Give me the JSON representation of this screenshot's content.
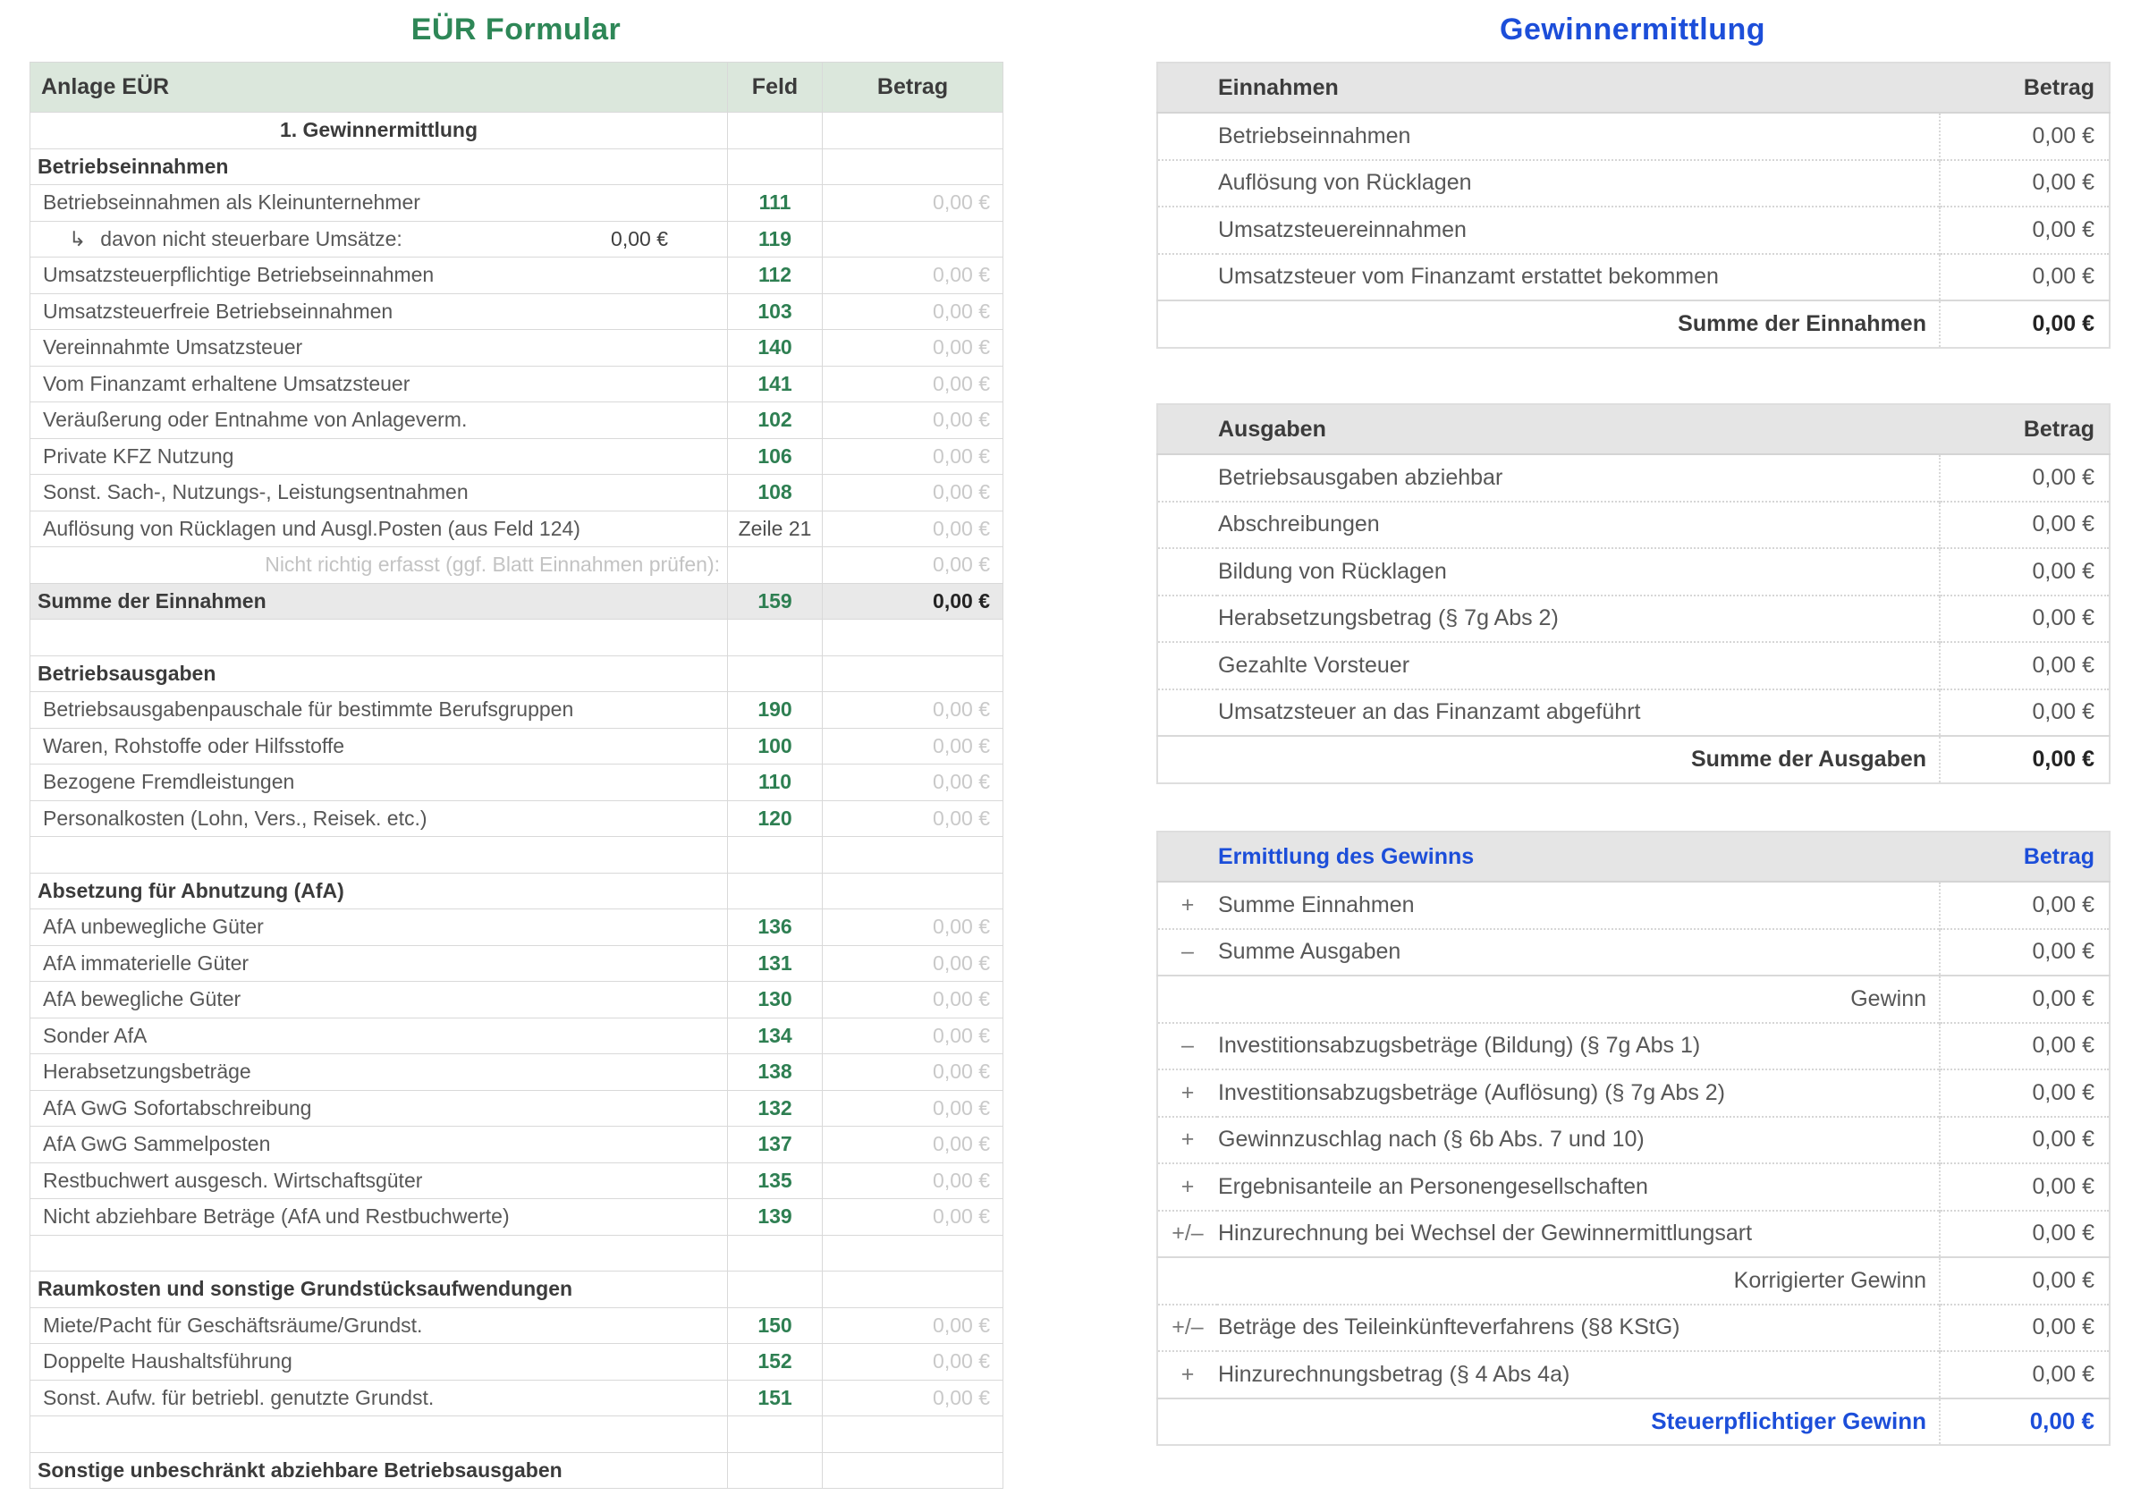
{
  "app": {
    "left_title": "EÜR Formular",
    "right_title": "Gewinnermittlung"
  },
  "colors": {
    "green_title": "#2E8757",
    "green_field": "#2E7F52",
    "blue_accent": "#1C4ED9",
    "left_header_bg": "#DBE7DC",
    "right_header_bg": "#E5E5E5",
    "sum_row_bg": "#E9E9E9",
    "muted_value": "#C9C9C9"
  },
  "left_table": {
    "header": {
      "label": "Anlage EÜR",
      "feld": "Feld",
      "betrag": "Betrag"
    },
    "rows": [
      {
        "type": "center",
        "label": "1. Gewinnermittlung",
        "feld": "",
        "betrag": ""
      },
      {
        "type": "section",
        "label": "Betriebseinnahmen",
        "feld": "",
        "betrag": ""
      },
      {
        "type": "item",
        "label": "Betriebseinnahmen als Kleinunternehmer",
        "feld": "111",
        "betrag": "0,00 €"
      },
      {
        "type": "sub",
        "label": "davon nicht steuerbare Umsätze:",
        "arrow": "↳",
        "inline_value": "0,00 €",
        "feld": "119",
        "betrag": ""
      },
      {
        "type": "item",
        "label": "Umsatzsteuerpflichtige Betriebseinnahmen",
        "feld": "112",
        "betrag": "0,00 €"
      },
      {
        "type": "item",
        "label": "Umsatzsteuerfreie Betriebseinnahmen",
        "feld": "103",
        "betrag": "0,00 €"
      },
      {
        "type": "item",
        "label": "Vereinnahmte Umsatzsteuer",
        "feld": "140",
        "betrag": "0,00 €"
      },
      {
        "type": "item",
        "label": "Vom Finanzamt erhaltene Umsatzsteuer",
        "feld": "141",
        "betrag": "0,00 €"
      },
      {
        "type": "item",
        "label": "Veräußerung oder Entnahme von Anlageverm.",
        "feld": "102",
        "betrag": "0,00 €"
      },
      {
        "type": "item",
        "label": "Private KFZ Nutzung",
        "feld": "106",
        "betrag": "0,00 €"
      },
      {
        "type": "item",
        "label": "Sonst. Sach-, Nutzungs-, Leistungsentnahmen",
        "feld": "108",
        "betrag": "0,00 €"
      },
      {
        "type": "item",
        "label": "Auflösung von Rücklagen und Ausgl.Posten (aus Feld 124)",
        "feld": "Zeile 21",
        "feld_plain": true,
        "betrag": "0,00 €"
      },
      {
        "type": "note",
        "label": "Nicht richtig erfasst (ggf. Blatt Einnahmen prüfen):",
        "feld": "",
        "betrag": "0,00 €"
      },
      {
        "type": "sum",
        "label": "Summe der Einnahmen",
        "feld": "159",
        "betrag": "0,00 €"
      },
      {
        "type": "empty",
        "label": "",
        "feld": "",
        "betrag": ""
      },
      {
        "type": "section",
        "label": "Betriebsausgaben",
        "feld": "",
        "betrag": ""
      },
      {
        "type": "item",
        "label": "Betriebsausgabenpauschale für bestimmte Berufsgruppen",
        "feld": "190",
        "betrag": "0,00 €"
      },
      {
        "type": "item",
        "label": "Waren, Rohstoffe oder Hilfsstoffe",
        "feld": "100",
        "betrag": "0,00 €"
      },
      {
        "type": "item",
        "label": "Bezogene Fremdleistungen",
        "feld": "110",
        "betrag": "0,00 €"
      },
      {
        "type": "item",
        "label": "Personalkosten (Lohn, Vers., Reisek. etc.)",
        "feld": "120",
        "betrag": "0,00 €"
      },
      {
        "type": "empty",
        "label": "",
        "feld": "",
        "betrag": ""
      },
      {
        "type": "section",
        "label": "Absetzung für Abnutzung (AfA)",
        "feld": "",
        "betrag": ""
      },
      {
        "type": "item",
        "label": "AfA unbewegliche Güter",
        "feld": "136",
        "betrag": "0,00 €"
      },
      {
        "type": "item",
        "label": "AfA immaterielle Güter",
        "feld": "131",
        "betrag": "0,00 €"
      },
      {
        "type": "item",
        "label": "AfA bewegliche Güter",
        "feld": "130",
        "betrag": "0,00 €"
      },
      {
        "type": "item",
        "label": "Sonder AfA",
        "feld": "134",
        "betrag": "0,00 €"
      },
      {
        "type": "item",
        "label": "Herabsetzungsbeträge",
        "feld": "138",
        "betrag": "0,00 €"
      },
      {
        "type": "item",
        "label": "AfA GwG Sofortabschreibung",
        "feld": "132",
        "betrag": "0,00 €"
      },
      {
        "type": "item",
        "label": "AfA GwG Sammelposten",
        "feld": "137",
        "betrag": "0,00 €"
      },
      {
        "type": "item",
        "label": "Restbuchwert ausgesch. Wirtschaftsgüter",
        "feld": "135",
        "betrag": "0,00 €"
      },
      {
        "type": "item",
        "label": "Nicht abziehbare Beträge (AfA und Restbuchwerte)",
        "feld": "139",
        "betrag": "0,00 €"
      },
      {
        "type": "empty",
        "label": "",
        "feld": "",
        "betrag": ""
      },
      {
        "type": "section",
        "label": "Raumkosten und sonstige Grundstücksaufwendungen",
        "feld": "",
        "betrag": ""
      },
      {
        "type": "item",
        "label": "Miete/Pacht für Geschäftsräume/Grundst.",
        "feld": "150",
        "betrag": "0,00 €"
      },
      {
        "type": "item",
        "label": "Doppelte Haushaltsführung",
        "feld": "152",
        "betrag": "0,00 €"
      },
      {
        "type": "item",
        "label": "Sonst. Aufw. für betriebl. genutzte Grundst.",
        "feld": "151",
        "betrag": "0,00 €"
      },
      {
        "type": "empty",
        "label": "",
        "feld": "",
        "betrag": ""
      },
      {
        "type": "section",
        "label": "Sonstige unbeschränkt abziehbare Betriebsausgaben",
        "feld": "",
        "betrag": ""
      }
    ]
  },
  "right_tables": [
    {
      "title": "Einnahmen",
      "amount_header": "Betrag",
      "rows": [
        {
          "type": "item",
          "label": "Betriebseinnahmen",
          "amount": "0,00 €"
        },
        {
          "type": "item",
          "label": "Auflösung von Rücklagen",
          "amount": "0,00 €"
        },
        {
          "type": "item",
          "label": "Umsatzsteuereinnahmen",
          "amount": "0,00 €"
        },
        {
          "type": "item",
          "label": "Umsatzsteuer vom Finanzamt erstattet bekommen",
          "amount": "0,00 €"
        },
        {
          "type": "summary",
          "label": "Summe der Einnahmen",
          "amount": "0,00 €"
        }
      ]
    },
    {
      "title": "Ausgaben",
      "amount_header": "Betrag",
      "rows": [
        {
          "type": "item",
          "label": "Betriebsausgaben abziehbar",
          "amount": "0,00 €"
        },
        {
          "type": "item",
          "label": "Abschreibungen",
          "amount": "0,00 €"
        },
        {
          "type": "item",
          "label": "Bildung von Rücklagen",
          "amount": "0,00 €"
        },
        {
          "type": "item",
          "label": "Herabsetzungsbetrag (§ 7g Abs 2)",
          "amount": "0,00 €"
        },
        {
          "type": "item",
          "label": "Gezahlte Vorsteuer",
          "amount": "0,00 €"
        },
        {
          "type": "item",
          "label": "Umsatzsteuer an das Finanzamt abgeführt",
          "amount": "0,00 €"
        },
        {
          "type": "summary",
          "label": "Summe der Ausgaben",
          "amount": "0,00 €"
        }
      ]
    },
    {
      "title": "Ermittlung des Gewinns",
      "amount_header": "Betrag",
      "rows": [
        {
          "type": "calc",
          "sign": "+",
          "label": "Summe Einnahmen",
          "amount": "0,00 €"
        },
        {
          "type": "calc",
          "sign": "–",
          "label": "Summe Ausgaben",
          "amount": "0,00 €"
        },
        {
          "type": "result",
          "label": "Gewinn",
          "amount": "0,00 €"
        },
        {
          "type": "calc",
          "sign": "–",
          "label": "Investitionsabzugsbeträge (Bildung) (§ 7g Abs 1)",
          "amount": "0,00 €"
        },
        {
          "type": "calc",
          "sign": "+",
          "label": "Investitionsabzugsbeträge (Auflösung) (§ 7g Abs 2)",
          "amount": "0,00 €"
        },
        {
          "type": "calc",
          "sign": "+",
          "label": "Gewinnzuschlag nach (§ 6b Abs. 7 und 10)",
          "amount": "0,00 €"
        },
        {
          "type": "calc",
          "sign": "+",
          "label": "Ergebnisanteile an Personengesellschaften",
          "amount": "0,00 €"
        },
        {
          "type": "calc",
          "sign": "+/–",
          "label": "Hinzurechnung bei Wechsel der Gewinnermittlungsart",
          "amount": "0,00 €"
        },
        {
          "type": "result",
          "label": "Korrigierter Gewinn",
          "amount": "0,00 €"
        },
        {
          "type": "calc",
          "sign": "+/–",
          "label": "Beträge des Teileinkünfteverfahrens (§8 KStG)",
          "amount": "0,00 €"
        },
        {
          "type": "calc",
          "sign": "+",
          "label": "Hinzurechnungsbetrag (§ 4 Abs 4a)",
          "amount": "0,00 €"
        },
        {
          "type": "final",
          "label": "Steuerpflichtiger Gewinn",
          "amount": "0,00 €"
        }
      ]
    }
  ]
}
